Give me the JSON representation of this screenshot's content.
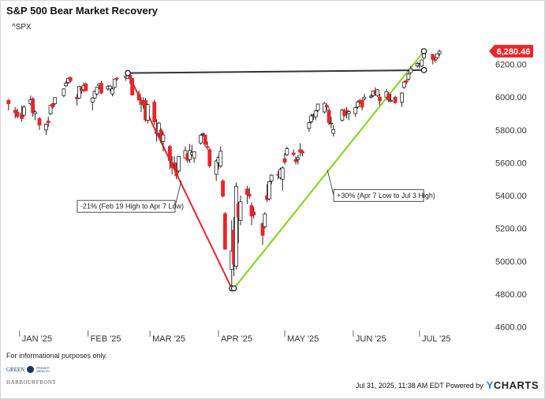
{
  "header": {
    "title": "S&P 500 Bear Market Recovery",
    "ticker": "^SPX"
  },
  "footer": {
    "disclaimer": "For informational purposes only.",
    "timestamp": "Jul 31, 2025, 11:38 AM EDT Powered by",
    "brand_y": "Y",
    "brand_rest": "CHARTS",
    "logo_top": "GREEN",
    "logo_top_small1": "PRIVATE",
    "logo_top_small2": "WEALTH",
    "logo_bottom": "HARBOURFRONT"
  },
  "colors": {
    "up": "#ffffff",
    "down": "#e8262b",
    "drop_line": "#e8262b",
    "rise_line": "#7fd61e",
    "level_line": "#333333",
    "price_badge": "#e8262b"
  },
  "chart_data": {
    "type": "candlestick",
    "title": "S&P 500 Bear Market Recovery",
    "series_name": "^SPX",
    "x_range": [
      "2024-12-26",
      "2025-07-31"
    ],
    "y_range": [
      4550,
      6400
    ],
    "y_ticks": [
      4600,
      4800,
      5000,
      5200,
      5400,
      5600,
      5800,
      6000,
      6200
    ],
    "y_tick_labels": [
      "4600.00",
      "4800.00",
      "5000.00",
      "5200.00",
      "5400.00",
      "5600.00",
      "5800.00",
      "6000.00",
      "6200.00"
    ],
    "x_ticks": [
      "2025-01-01",
      "2025-02-01",
      "2025-03-01",
      "2025-04-01",
      "2025-05-01",
      "2025-06-01",
      "2025-07-01"
    ],
    "x_tick_labels": [
      "JAN '25",
      "FEB '25",
      "MAR '25",
      "APR '25",
      "MAY '25",
      "JUN '25",
      "JUL '25"
    ],
    "grid": false,
    "last_price": 6280.46,
    "last_price_label": "6,280.46",
    "candles": [
      {
        "date": "2024-12-27",
        "o": 5980,
        "h": 5990,
        "l": 5920,
        "c": 5960
      },
      {
        "date": "2024-12-30",
        "o": 5920,
        "h": 5940,
        "l": 5870,
        "c": 5905
      },
      {
        "date": "2024-12-31",
        "o": 5910,
        "h": 5930,
        "l": 5870,
        "c": 5882
      },
      {
        "date": "2025-01-02",
        "o": 5900,
        "h": 5950,
        "l": 5850,
        "c": 5870
      },
      {
        "date": "2025-01-03",
        "o": 5890,
        "h": 5950,
        "l": 5880,
        "c": 5940
      },
      {
        "date": "2025-01-06",
        "o": 5960,
        "h": 6010,
        "l": 5950,
        "c": 5985
      },
      {
        "date": "2025-01-07",
        "o": 5990,
        "h": 6000,
        "l": 5880,
        "c": 5905
      },
      {
        "date": "2025-01-08",
        "o": 5900,
        "h": 5920,
        "l": 5860,
        "c": 5910
      },
      {
        "date": "2025-01-10",
        "o": 5870,
        "h": 5880,
        "l": 5800,
        "c": 5830
      },
      {
        "date": "2025-01-13",
        "o": 5800,
        "h": 5840,
        "l": 5770,
        "c": 5835
      },
      {
        "date": "2025-01-14",
        "o": 5855,
        "h": 5880,
        "l": 5820,
        "c": 5845
      },
      {
        "date": "2025-01-15",
        "o": 5900,
        "h": 5955,
        "l": 5890,
        "c": 5950
      },
      {
        "date": "2025-01-16",
        "o": 5960,
        "h": 5965,
        "l": 5930,
        "c": 5940
      },
      {
        "date": "2025-01-17",
        "o": 5960,
        "h": 6000,
        "l": 5950,
        "c": 5997
      },
      {
        "date": "2025-01-21",
        "o": 6010,
        "h": 6055,
        "l": 6000,
        "c": 6050
      },
      {
        "date": "2025-01-22",
        "o": 6070,
        "h": 6100,
        "l": 6060,
        "c": 6085
      },
      {
        "date": "2025-01-23",
        "o": 6090,
        "h": 6120,
        "l": 6080,
        "c": 6115
      },
      {
        "date": "2025-01-24",
        "o": 6120,
        "h": 6125,
        "l": 6090,
        "c": 6100
      },
      {
        "date": "2025-01-27",
        "o": 6000,
        "h": 6020,
        "l": 5950,
        "c": 5990
      },
      {
        "date": "2025-01-28",
        "o": 5995,
        "h": 6070,
        "l": 5990,
        "c": 6065
      },
      {
        "date": "2025-01-29",
        "o": 6060,
        "h": 6065,
        "l": 6020,
        "c": 6040
      },
      {
        "date": "2025-01-30",
        "o": 6045,
        "h": 6090,
        "l": 6030,
        "c": 6070
      },
      {
        "date": "2025-01-31",
        "o": 6080,
        "h": 6090,
        "l": 6035,
        "c": 6040
      },
      {
        "date": "2025-02-03",
        "o": 5970,
        "h": 6000,
        "l": 5920,
        "c": 5995
      },
      {
        "date": "2025-02-04",
        "o": 5995,
        "h": 6040,
        "l": 5990,
        "c": 6035
      },
      {
        "date": "2025-02-05",
        "o": 6020,
        "h": 6065,
        "l": 6010,
        "c": 6060
      },
      {
        "date": "2025-02-06",
        "o": 6070,
        "h": 6085,
        "l": 6050,
        "c": 6080
      },
      {
        "date": "2025-02-07",
        "o": 6085,
        "h": 6100,
        "l": 6020,
        "c": 6025
      },
      {
        "date": "2025-02-10",
        "o": 6050,
        "h": 6075,
        "l": 6040,
        "c": 6065
      },
      {
        "date": "2025-02-11",
        "o": 6050,
        "h": 6075,
        "l": 6035,
        "c": 6068
      },
      {
        "date": "2025-02-12",
        "o": 6020,
        "h": 6060,
        "l": 6005,
        "c": 6050
      },
      {
        "date": "2025-02-13",
        "o": 6060,
        "h": 6115,
        "l": 6050,
        "c": 6110
      },
      {
        "date": "2025-02-14",
        "o": 6115,
        "h": 6125,
        "l": 6100,
        "c": 6112
      },
      {
        "date": "2025-02-18",
        "o": 6120,
        "h": 6130,
        "l": 6100,
        "c": 6128
      },
      {
        "date": "2025-02-19",
        "o": 6115,
        "h": 6147,
        "l": 6110,
        "c": 6144
      },
      {
        "date": "2025-02-20",
        "o": 6135,
        "h": 6140,
        "l": 6080,
        "c": 6117
      },
      {
        "date": "2025-02-21",
        "o": 6115,
        "h": 6115,
        "l": 6010,
        "c": 6013
      },
      {
        "date": "2025-02-24",
        "o": 6020,
        "h": 6040,
        "l": 5980,
        "c": 5983
      },
      {
        "date": "2025-02-25",
        "o": 5980,
        "h": 6000,
        "l": 5910,
        "c": 5955
      },
      {
        "date": "2025-02-26",
        "o": 5970,
        "h": 6000,
        "l": 5930,
        "c": 5956
      },
      {
        "date": "2025-02-27",
        "o": 5980,
        "h": 5995,
        "l": 5850,
        "c": 5861
      },
      {
        "date": "2025-02-28",
        "o": 5860,
        "h": 5960,
        "l": 5840,
        "c": 5955
      },
      {
        "date": "2025-03-03",
        "o": 5970,
        "h": 5985,
        "l": 5830,
        "c": 5850
      },
      {
        "date": "2025-03-04",
        "o": 5810,
        "h": 5865,
        "l": 5730,
        "c": 5778
      },
      {
        "date": "2025-03-05",
        "o": 5780,
        "h": 5850,
        "l": 5760,
        "c": 5842
      },
      {
        "date": "2025-03-06",
        "o": 5800,
        "h": 5810,
        "l": 5720,
        "c": 5738
      },
      {
        "date": "2025-03-07",
        "o": 5730,
        "h": 5790,
        "l": 5670,
        "c": 5770
      },
      {
        "date": "2025-03-10",
        "o": 5700,
        "h": 5710,
        "l": 5560,
        "c": 5614
      },
      {
        "date": "2025-03-11",
        "o": 5600,
        "h": 5640,
        "l": 5530,
        "c": 5572
      },
      {
        "date": "2025-03-12",
        "o": 5600,
        "h": 5640,
        "l": 5560,
        "c": 5599
      },
      {
        "date": "2025-03-13",
        "o": 5590,
        "h": 5600,
        "l": 5500,
        "c": 5521
      },
      {
        "date": "2025-03-14",
        "o": 5550,
        "h": 5640,
        "l": 5540,
        "c": 5639
      },
      {
        "date": "2025-03-17",
        "o": 5630,
        "h": 5700,
        "l": 5625,
        "c": 5675
      },
      {
        "date": "2025-03-18",
        "o": 5655,
        "h": 5660,
        "l": 5600,
        "c": 5615
      },
      {
        "date": "2025-03-19",
        "o": 5620,
        "h": 5715,
        "l": 5600,
        "c": 5675
      },
      {
        "date": "2025-03-20",
        "o": 5650,
        "h": 5710,
        "l": 5640,
        "c": 5663
      },
      {
        "date": "2025-03-21",
        "o": 5630,
        "h": 5670,
        "l": 5600,
        "c": 5667
      },
      {
        "date": "2025-03-24",
        "o": 5720,
        "h": 5775,
        "l": 5710,
        "c": 5768
      },
      {
        "date": "2025-03-25",
        "o": 5775,
        "h": 5785,
        "l": 5760,
        "c": 5777
      },
      {
        "date": "2025-03-26",
        "o": 5770,
        "h": 5770,
        "l": 5700,
        "c": 5712
      },
      {
        "date": "2025-03-27",
        "o": 5700,
        "h": 5730,
        "l": 5680,
        "c": 5693
      },
      {
        "date": "2025-03-28",
        "o": 5680,
        "h": 5690,
        "l": 5570,
        "c": 5581
      },
      {
        "date": "2025-03-31",
        "o": 5530,
        "h": 5620,
        "l": 5490,
        "c": 5612
      },
      {
        "date": "2025-04-01",
        "o": 5600,
        "h": 5640,
        "l": 5560,
        "c": 5633
      },
      {
        "date": "2025-04-02",
        "o": 5580,
        "h": 5700,
        "l": 5570,
        "c": 5671
      },
      {
        "date": "2025-04-03",
        "o": 5490,
        "h": 5500,
        "l": 5390,
        "c": 5397
      },
      {
        "date": "2025-04-04",
        "o": 5290,
        "h": 5300,
        "l": 5070,
        "c": 5074
      },
      {
        "date": "2025-04-07",
        "o": 4950,
        "h": 5250,
        "l": 4835,
        "c": 5062
      },
      {
        "date": "2025-04-08",
        "o": 5190,
        "h": 5270,
        "l": 4910,
        "c": 4982
      },
      {
        "date": "2025-04-09",
        "o": 4970,
        "h": 5480,
        "l": 4950,
        "c": 5457
      },
      {
        "date": "2025-04-10",
        "o": 5350,
        "h": 5360,
        "l": 5110,
        "c": 5268
      },
      {
        "date": "2025-04-11",
        "o": 5250,
        "h": 5400,
        "l": 5220,
        "c": 5363
      },
      {
        "date": "2025-04-14",
        "o": 5440,
        "h": 5460,
        "l": 5350,
        "c": 5406
      },
      {
        "date": "2025-04-15",
        "o": 5410,
        "h": 5450,
        "l": 5380,
        "c": 5397
      },
      {
        "date": "2025-04-16",
        "o": 5340,
        "h": 5360,
        "l": 5220,
        "c": 5276
      },
      {
        "date": "2025-04-17",
        "o": 5300,
        "h": 5330,
        "l": 5260,
        "c": 5283
      },
      {
        "date": "2025-04-21",
        "o": 5230,
        "h": 5235,
        "l": 5100,
        "c": 5158
      },
      {
        "date": "2025-04-22",
        "o": 5210,
        "h": 5300,
        "l": 5200,
        "c": 5288
      },
      {
        "date": "2025-04-23",
        "o": 5400,
        "h": 5470,
        "l": 5360,
        "c": 5376
      },
      {
        "date": "2025-04-24",
        "o": 5380,
        "h": 5490,
        "l": 5370,
        "c": 5485
      },
      {
        "date": "2025-04-25",
        "o": 5490,
        "h": 5530,
        "l": 5470,
        "c": 5525
      },
      {
        "date": "2025-04-28",
        "o": 5530,
        "h": 5550,
        "l": 5500,
        "c": 5528
      },
      {
        "date": "2025-04-29",
        "o": 5510,
        "h": 5570,
        "l": 5500,
        "c": 5560
      },
      {
        "date": "2025-04-30",
        "o": 5500,
        "h": 5580,
        "l": 5430,
        "c": 5569
      },
      {
        "date": "2025-05-01",
        "o": 5625,
        "h": 5660,
        "l": 5590,
        "c": 5604
      },
      {
        "date": "2025-05-02",
        "o": 5650,
        "h": 5700,
        "l": 5640,
        "c": 5686
      },
      {
        "date": "2025-05-05",
        "o": 5660,
        "h": 5680,
        "l": 5640,
        "c": 5650
      },
      {
        "date": "2025-05-06",
        "o": 5620,
        "h": 5640,
        "l": 5590,
        "c": 5607
      },
      {
        "date": "2025-05-07",
        "o": 5620,
        "h": 5650,
        "l": 5590,
        "c": 5631
      },
      {
        "date": "2025-05-08",
        "o": 5680,
        "h": 5720,
        "l": 5640,
        "c": 5664
      },
      {
        "date": "2025-05-09",
        "o": 5670,
        "h": 5680,
        "l": 5640,
        "c": 5660
      },
      {
        "date": "2025-05-12",
        "o": 5810,
        "h": 5850,
        "l": 5790,
        "c": 5844
      },
      {
        "date": "2025-05-13",
        "o": 5850,
        "h": 5900,
        "l": 5840,
        "c": 5886
      },
      {
        "date": "2025-05-14",
        "o": 5890,
        "h": 5900,
        "l": 5860,
        "c": 5892
      },
      {
        "date": "2025-05-15",
        "o": 5880,
        "h": 5920,
        "l": 5860,
        "c": 5916
      },
      {
        "date": "2025-05-16",
        "o": 5920,
        "h": 5960,
        "l": 5910,
        "c": 5958
      },
      {
        "date": "2025-05-19",
        "o": 5910,
        "h": 5970,
        "l": 5900,
        "c": 5963
      },
      {
        "date": "2025-05-20",
        "o": 5950,
        "h": 5960,
        "l": 5920,
        "c": 5940
      },
      {
        "date": "2025-05-21",
        "o": 5920,
        "h": 5940,
        "l": 5830,
        "c": 5845
      },
      {
        "date": "2025-05-22",
        "o": 5840,
        "h": 5880,
        "l": 5810,
        "c": 5842
      },
      {
        "date": "2025-05-23",
        "o": 5780,
        "h": 5830,
        "l": 5760,
        "c": 5802
      },
      {
        "date": "2025-05-27",
        "o": 5860,
        "h": 5930,
        "l": 5850,
        "c": 5922
      },
      {
        "date": "2025-05-28",
        "o": 5920,
        "h": 5930,
        "l": 5880,
        "c": 5889
      },
      {
        "date": "2025-05-29",
        "o": 5920,
        "h": 5940,
        "l": 5870,
        "c": 5912
      },
      {
        "date": "2025-05-30",
        "o": 5900,
        "h": 5920,
        "l": 5860,
        "c": 5912
      },
      {
        "date": "2025-06-02",
        "o": 5900,
        "h": 5940,
        "l": 5880,
        "c": 5936
      },
      {
        "date": "2025-06-03",
        "o": 5940,
        "h": 5980,
        "l": 5930,
        "c": 5970
      },
      {
        "date": "2025-06-04",
        "o": 5980,
        "h": 5990,
        "l": 5960,
        "c": 5970
      },
      {
        "date": "2025-06-05",
        "o": 5980,
        "h": 5990,
        "l": 5920,
        "c": 5939
      },
      {
        "date": "2025-06-06",
        "o": 5990,
        "h": 6020,
        "l": 5980,
        "c": 6000
      },
      {
        "date": "2025-06-09",
        "o": 6000,
        "h": 6020,
        "l": 5990,
        "c": 6006
      },
      {
        "date": "2025-06-10",
        "o": 6010,
        "h": 6040,
        "l": 6000,
        "c": 6038
      },
      {
        "date": "2025-06-11",
        "o": 6040,
        "h": 6060,
        "l": 6010,
        "c": 6022
      },
      {
        "date": "2025-06-12",
        "o": 6010,
        "h": 6050,
        "l": 6000,
        "c": 6045
      },
      {
        "date": "2025-06-13",
        "o": 6000,
        "h": 6020,
        "l": 5950,
        "c": 5977
      },
      {
        "date": "2025-06-16",
        "o": 6000,
        "h": 6050,
        "l": 5990,
        "c": 6033
      },
      {
        "date": "2025-06-17",
        "o": 6020,
        "h": 6030,
        "l": 5970,
        "c": 5982
      },
      {
        "date": "2025-06-18",
        "o": 5980,
        "h": 6020,
        "l": 5970,
        "c": 5981
      },
      {
        "date": "2025-06-20",
        "o": 6000,
        "h": 6010,
        "l": 5960,
        "c": 5967
      },
      {
        "date": "2025-06-23",
        "o": 5970,
        "h": 6030,
        "l": 5940,
        "c": 6025
      },
      {
        "date": "2025-06-24",
        "o": 6060,
        "h": 6100,
        "l": 6050,
        "c": 6092
      },
      {
        "date": "2025-06-25",
        "o": 6100,
        "h": 6110,
        "l": 6080,
        "c": 6092
      },
      {
        "date": "2025-06-26",
        "o": 6110,
        "h": 6150,
        "l": 6100,
        "c": 6141
      },
      {
        "date": "2025-06-27",
        "o": 6150,
        "h": 6190,
        "l": 6140,
        "c": 6173
      },
      {
        "date": "2025-06-30",
        "o": 6190,
        "h": 6215,
        "l": 6180,
        "c": 6205
      },
      {
        "date": "2025-07-01",
        "o": 6190,
        "h": 6210,
        "l": 6175,
        "c": 6198
      },
      {
        "date": "2025-07-02",
        "o": 6190,
        "h": 6230,
        "l": 6185,
        "c": 6227
      },
      {
        "date": "2025-07-03",
        "o": 6240,
        "h": 6285,
        "l": 6230,
        "c": 6279
      },
      {
        "date": "2025-07-07",
        "o": 6260,
        "h": 6265,
        "l": 6200,
        "c": 6229
      },
      {
        "date": "2025-07-08",
        "o": 6230,
        "h": 6245,
        "l": 6210,
        "c": 6225
      },
      {
        "date": "2025-07-09",
        "o": 6240,
        "h": 6265,
        "l": 6230,
        "c": 6263
      },
      {
        "date": "2025-07-10",
        "o": 6265,
        "h": 6290,
        "l": 6250,
        "c": 6280
      }
    ],
    "annotations": [
      {
        "name": "drop",
        "label": "-21% (Feb 19 High to Apr 7 Low)",
        "from": {
          "date": "2025-02-19",
          "value": 6147
        },
        "to": {
          "date": "2025-04-07",
          "value": 4835
        }
      },
      {
        "name": "rise",
        "label": "+30% (Apr 7 Low to Jul 3 High)",
        "from": {
          "date": "2025-04-08",
          "value": 4835
        },
        "to": {
          "date": "2025-07-03",
          "value": 6280
        }
      },
      {
        "name": "level",
        "from": {
          "date": "2025-02-19",
          "value": 6147
        },
        "to": {
          "date": "2025-07-03",
          "value": 6165
        }
      }
    ]
  }
}
